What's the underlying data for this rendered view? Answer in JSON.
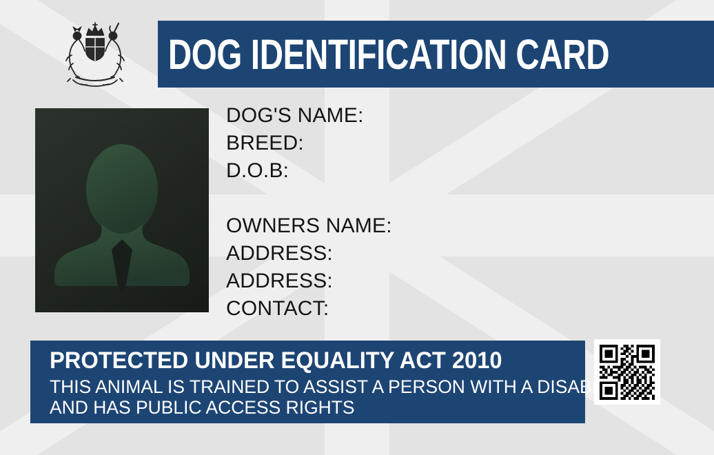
{
  "card": {
    "header": {
      "title": "DOG IDENTIFICATION CARD"
    },
    "emblem": {
      "icon": "royal-coat-of-arms"
    },
    "photo": {
      "icon": "person-silhouette-placeholder"
    },
    "dog_fields": [
      {
        "label": "DOG'S NAME:"
      },
      {
        "label": "BREED:"
      },
      {
        "label": "D.O.B:"
      }
    ],
    "owner_fields": [
      {
        "label": "OWNERS NAME:"
      },
      {
        "label": "ADDRESS:"
      },
      {
        "label": "ADDRESS:"
      },
      {
        "label": "CONTACT:"
      }
    ],
    "footer": {
      "line1": "PROTECTED UNDER EQUALITY ACT 2010",
      "line2": "THIS ANIMAL IS TRAINED TO ASSIST A PERSON WITH A DISABILITY",
      "line3": "AND HAS PUBLIC ACCESS RIGHTS"
    },
    "colors": {
      "banner_blue": "#1d4574",
      "background_base": "#e3e3e3",
      "background_band": "#eeefee",
      "label_text": "#141414",
      "banner_text": "#ffffff",
      "photo_silhouette_green": "#2f4a37",
      "qr_dark": "#000000"
    },
    "qr": {
      "icon": "qr-code",
      "matrix": [
        "111111100110101111111",
        "100000101011001000001",
        "101110100110101011101",
        "101110101101001011101",
        "101110100010111011101",
        "100000101100101000001",
        "111111101010101111111",
        "000000001101100000000",
        "110101111011010111010",
        "011010010110101001101",
        "101011101101011010110",
        "010110011010110101001",
        "111001110101101011010",
        "000000010110101101010",
        "111111100110101101011",
        "100000101101011010110",
        "101110101010110101101",
        "101110100101101011010",
        "101110101011010110110",
        "100000100110101101001",
        "111111101101011011101"
      ]
    }
  }
}
